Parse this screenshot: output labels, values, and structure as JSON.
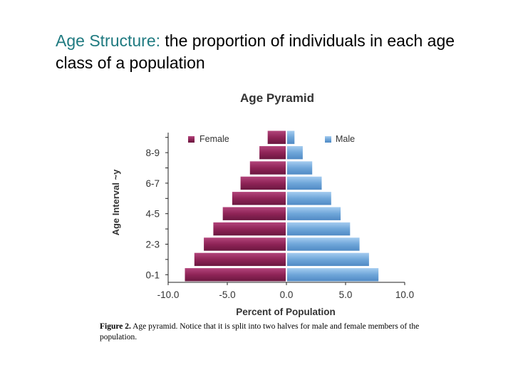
{
  "heading": {
    "term": "Age Structure:",
    "definition": " the proportion of individuals in each age class of a population"
  },
  "caption": {
    "label": "Figure 2.",
    "text": "  Age pyramid.  Notice that it is split into two halves for male and female members of the population."
  },
  "chart_data": {
    "type": "bar",
    "orientation": "horizontal",
    "layout": "population-pyramid",
    "title": "Age Pyramid",
    "xlabel": "Percent of Population",
    "ylabel": "Age Interval ~y",
    "xlim": [
      -10.0,
      10.0
    ],
    "x_ticks": [
      "-10.0",
      "-5.0",
      "0.0",
      "5.0",
      "10.0"
    ],
    "x_tick_values": [
      -10,
      -5,
      0,
      5,
      10
    ],
    "categories": [
      "0-1",
      "",
      "2-3",
      "",
      "4-5",
      "",
      "6-7",
      "",
      "8-9",
      ""
    ],
    "legend_position": "top",
    "grid": false,
    "series": [
      {
        "name": "Female",
        "color": "#8f2457",
        "values": [
          -8.6,
          -7.8,
          -7.0,
          -6.2,
          -5.4,
          -4.6,
          -3.9,
          -3.1,
          -2.3,
          -1.6
        ]
      },
      {
        "name": "Male",
        "color": "#5d97cf",
        "values": [
          7.8,
          7.0,
          6.2,
          5.4,
          4.6,
          3.8,
          3.0,
          2.2,
          1.4,
          0.7
        ]
      }
    ]
  }
}
